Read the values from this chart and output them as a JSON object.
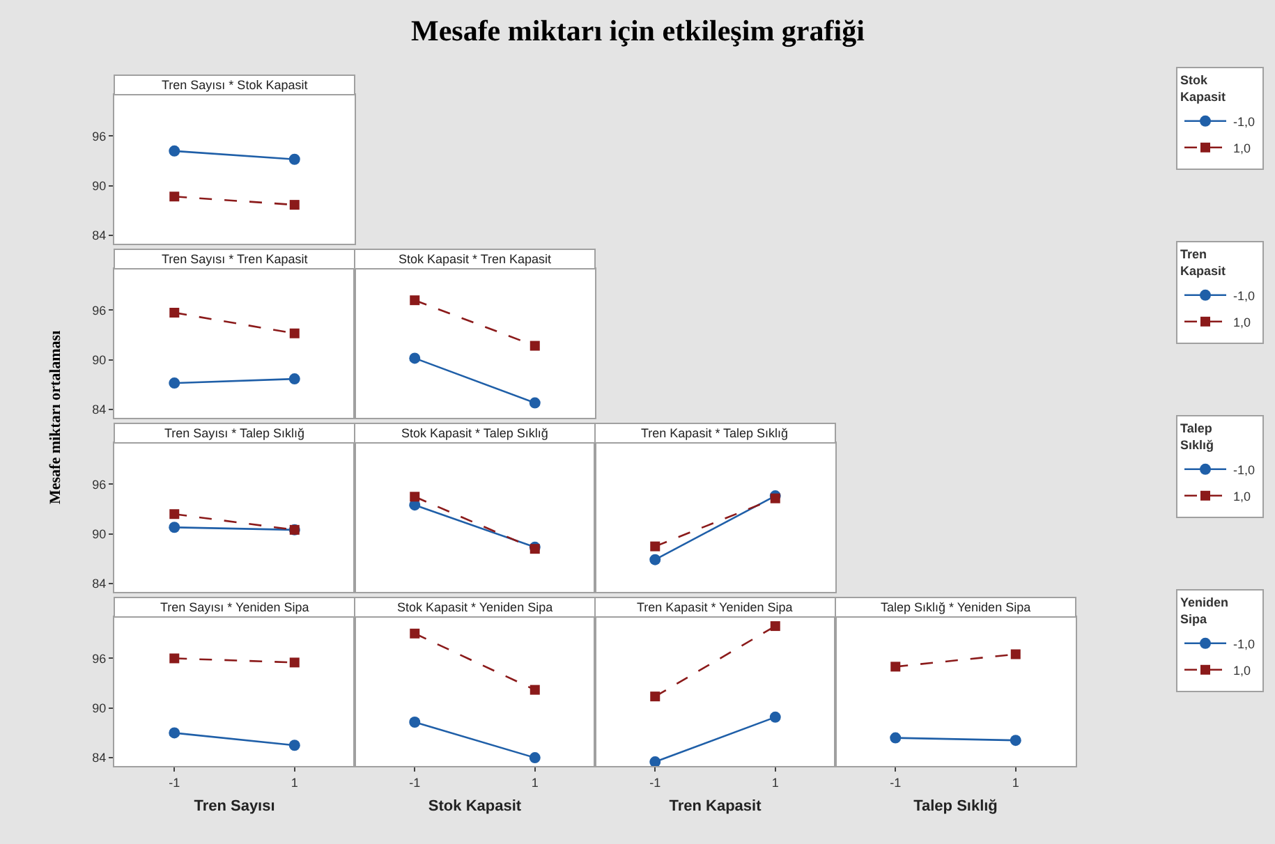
{
  "chart_data": [
    {
      "type": "other",
      "title": "Mesafe miktarı için etkileşim grafiği",
      "ylabel": "Mesafe miktarı ortalaması"
    },
    {
      "type": "line",
      "title": "Tren Sayısı * Stok Kapasit",
      "categories": [
        "-1",
        "1"
      ],
      "ylim": [
        83,
        101
      ],
      "yticks": [
        84,
        90,
        96
      ],
      "tick_labels": "y",
      "legend": "right",
      "legend_title": "Stok Kapasit",
      "series": [
        {
          "name": "-1,0",
          "color": "#1f5fa8",
          "marker": "circle",
          "line_style": "solid",
          "values": [
            94.2,
            93.2
          ]
        },
        {
          "name": "1,0",
          "color": "#8b1a1a",
          "marker": "square",
          "line_style": "dashed",
          "values": [
            88.7,
            87.7
          ]
        }
      ]
    },
    {
      "type": "line",
      "title": "Tren Sayısı * Tren Kapasit",
      "categories": [
        "-1",
        "1"
      ],
      "ylim": [
        83,
        101
      ],
      "yticks": [
        84,
        90,
        96
      ],
      "tick_labels": "y",
      "legend": "right",
      "legend_title": "Tren Kapasit",
      "series": [
        {
          "name": "-1,0",
          "color": "#1f5fa8",
          "marker": "circle",
          "line_style": "solid",
          "values": [
            87.2,
            87.7
          ]
        },
        {
          "name": "1,0",
          "color": "#8b1a1a",
          "marker": "square",
          "line_style": "dashed",
          "values": [
            95.7,
            93.2
          ]
        }
      ]
    },
    {
      "type": "line",
      "title": "Stok Kapasit * Tren Kapasit",
      "categories": [
        "-1",
        "1"
      ],
      "ylim": [
        83,
        101
      ],
      "yticks": [
        84,
        90,
        96
      ],
      "tick_labels": false,
      "series": [
        {
          "color": "#1f5fa8",
          "marker": "circle",
          "line_style": "solid",
          "values": [
            90.2,
            84.8
          ]
        },
        {
          "color": "#8b1a1a",
          "marker": "square",
          "line_style": "dashed",
          "values": [
            97.2,
            91.7
          ]
        }
      ]
    },
    {
      "type": "line",
      "title": "Tren Sayısı * Talep Sıklığ",
      "categories": [
        "-1",
        "1"
      ],
      "ylim": [
        83,
        101
      ],
      "yticks": [
        84,
        90,
        96
      ],
      "tick_labels": "y",
      "legend": "right",
      "legend_title": "Talep Sıklığ",
      "series": [
        {
          "name": "-1,0",
          "color": "#1f5fa8",
          "marker": "circle",
          "line_style": "solid",
          "values": [
            90.8,
            90.5
          ]
        },
        {
          "name": "1,0",
          "color": "#8b1a1a",
          "marker": "square",
          "line_style": "dashed",
          "values": [
            92.4,
            90.5
          ]
        }
      ]
    },
    {
      "type": "line",
      "title": "Stok Kapasit * Talep Sıklığ",
      "categories": [
        "-1",
        "1"
      ],
      "ylim": [
        83,
        101
      ],
      "yticks": [
        84,
        90,
        96
      ],
      "tick_labels": false,
      "series": [
        {
          "color": "#1f5fa8",
          "marker": "circle",
          "line_style": "solid",
          "values": [
            93.5,
            88.4
          ]
        },
        {
          "color": "#8b1a1a",
          "marker": "square",
          "line_style": "dashed",
          "values": [
            94.5,
            88.2
          ]
        }
      ]
    },
    {
      "type": "line",
      "title": "Tren Kapasit * Talep Sıklığ",
      "categories": [
        "-1",
        "1"
      ],
      "ylim": [
        83,
        101
      ],
      "yticks": [
        84,
        90,
        96
      ],
      "tick_labels": false,
      "series": [
        {
          "color": "#1f5fa8",
          "marker": "circle",
          "line_style": "solid",
          "values": [
            86.9,
            94.6
          ]
        },
        {
          "color": "#8b1a1a",
          "marker": "square",
          "line_style": "dashed",
          "values": [
            88.5,
            94.3
          ]
        }
      ]
    },
    {
      "type": "line",
      "title": "Tren Sayısı * Yeniden Sipa",
      "xlabel": "Tren Sayısı",
      "categories": [
        "-1",
        "1"
      ],
      "ylim": [
        83,
        101
      ],
      "yticks": [
        84,
        90,
        96
      ],
      "legend": "right",
      "legend_title": "Yeniden Sipa",
      "series": [
        {
          "name": "-1,0",
          "color": "#1f5fa8",
          "marker": "circle",
          "line_style": "solid",
          "values": [
            87.0,
            85.5
          ]
        },
        {
          "name": "1,0",
          "color": "#8b1a1a",
          "marker": "square",
          "line_style": "dashed",
          "values": [
            96.0,
            95.5
          ]
        }
      ]
    },
    {
      "type": "line",
      "title": "Stok Kapasit * Yeniden Sipa",
      "xlabel": "Stok Kapasit",
      "categories": [
        "-1",
        "1"
      ],
      "ylim": [
        83,
        101
      ],
      "yticks": [
        84,
        90,
        96
      ],
      "tick_labels": "x",
      "series": [
        {
          "color": "#1f5fa8",
          "marker": "circle",
          "line_style": "solid",
          "values": [
            88.3,
            84.0
          ]
        },
        {
          "color": "#8b1a1a",
          "marker": "square",
          "line_style": "dashed",
          "values": [
            99.0,
            92.2
          ]
        }
      ]
    },
    {
      "type": "line",
      "title": "Tren Kapasit * Yeniden Sipa",
      "xlabel": "Tren Kapasit",
      "categories": [
        "-1",
        "1"
      ],
      "ylim": [
        83,
        101
      ],
      "yticks": [
        84,
        90,
        96
      ],
      "tick_labels": "x",
      "series": [
        {
          "color": "#1f5fa8",
          "marker": "circle",
          "line_style": "solid",
          "values": [
            83.5,
            88.9
          ]
        },
        {
          "color": "#8b1a1a",
          "marker": "square",
          "line_style": "dashed",
          "values": [
            91.4,
            99.9
          ]
        }
      ]
    },
    {
      "type": "line",
      "title": "Talep Sıklığ * Yeniden Sipa",
      "xlabel": "Talep Sıklığ",
      "categories": [
        "-1",
        "1"
      ],
      "ylim": [
        83,
        101
      ],
      "yticks": [
        84,
        90,
        96
      ],
      "tick_labels": "x",
      "series": [
        {
          "color": "#1f5fa8",
          "marker": "circle",
          "line_style": "solid",
          "values": [
            86.4,
            86.1
          ]
        },
        {
          "color": "#8b1a1a",
          "marker": "square",
          "line_style": "dashed",
          "values": [
            95.0,
            96.5
          ]
        }
      ]
    }
  ]
}
